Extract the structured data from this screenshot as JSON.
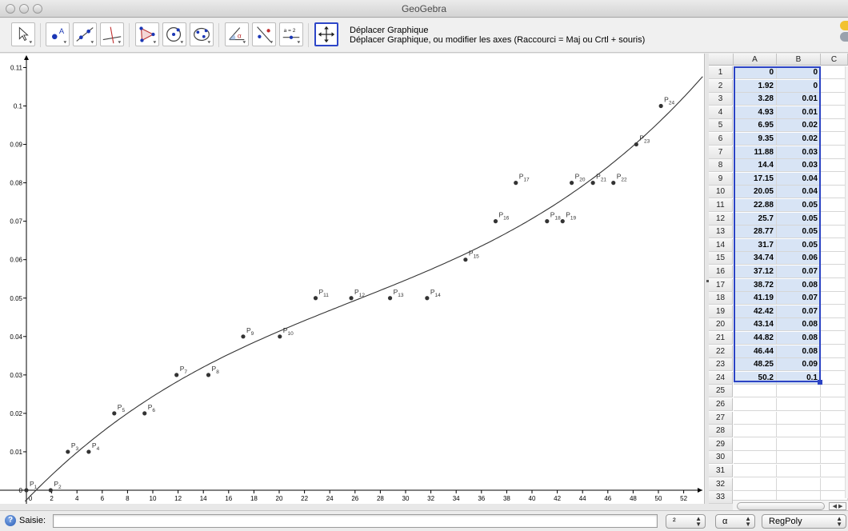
{
  "window": {
    "title": "GeoGebra"
  },
  "toolbar": {
    "tools": [
      {
        "name": "move-tool-button",
        "icon": "arrow-pointer-icon"
      },
      {
        "name": "point-tool-button",
        "icon": "point-icon",
        "glyph": "A"
      },
      {
        "name": "line-tool-button",
        "icon": "line-icon"
      },
      {
        "name": "perpendicular-tool-button",
        "icon": "perpendicular-line-icon"
      },
      {
        "name": "polygon-tool-button",
        "icon": "polygon-icon"
      },
      {
        "name": "circle-tool-button",
        "icon": "circle-icon"
      },
      {
        "name": "conic-tool-button",
        "icon": "conic-icon"
      },
      {
        "name": "angle-tool-button",
        "icon": "angle-icon",
        "glyph": "α"
      },
      {
        "name": "reflect-tool-button",
        "icon": "reflect-icon"
      },
      {
        "name": "slider-tool-button",
        "icon": "slider-icon",
        "glyph": "a = 2"
      },
      {
        "name": "move-graphics-tool-button",
        "icon": "move-graphics-icon"
      }
    ],
    "selected_tool_title": "Déplacer Graphique",
    "selected_tool_help": "Déplacer Graphique, ou modifier les axes (Raccourci = Maj ou Crtl + souris)"
  },
  "graphics": {
    "x_ticks": [
      "0",
      "2",
      "4",
      "6",
      "8",
      "10",
      "12",
      "14",
      "16",
      "18",
      "20",
      "22",
      "24",
      "26",
      "28",
      "30",
      "32",
      "34",
      "36",
      "38",
      "40",
      "42",
      "44",
      "46",
      "48",
      "50",
      "52"
    ],
    "y_ticks": [
      "0",
      "0.01",
      "0.02",
      "0.03",
      "0.04",
      "0.05",
      "0.06",
      "0.07",
      "0.08",
      "0.09",
      "0.1",
      "0.11"
    ],
    "points": [
      {
        "label": "P",
        "sub": "1",
        "x": 0,
        "y": 0
      },
      {
        "label": "P",
        "sub": "2",
        "x": 1.92,
        "y": 0
      },
      {
        "label": "P",
        "sub": "3",
        "x": 3.28,
        "y": 0.01
      },
      {
        "label": "P",
        "sub": "4",
        "x": 4.93,
        "y": 0.01
      },
      {
        "label": "P",
        "sub": "5",
        "x": 6.95,
        "y": 0.02
      },
      {
        "label": "P",
        "sub": "6",
        "x": 9.35,
        "y": 0.02
      },
      {
        "label": "P",
        "sub": "7",
        "x": 11.88,
        "y": 0.03
      },
      {
        "label": "P",
        "sub": "8",
        "x": 14.4,
        "y": 0.03
      },
      {
        "label": "P",
        "sub": "9",
        "x": 17.15,
        "y": 0.04
      },
      {
        "label": "P",
        "sub": "10",
        "x": 20.05,
        "y": 0.04
      },
      {
        "label": "P",
        "sub": "11",
        "x": 22.88,
        "y": 0.05
      },
      {
        "label": "P",
        "sub": "12",
        "x": 25.7,
        "y": 0.05
      },
      {
        "label": "P",
        "sub": "13",
        "x": 28.77,
        "y": 0.05
      },
      {
        "label": "P",
        "sub": "14",
        "x": 31.7,
        "y": 0.05
      },
      {
        "label": "P",
        "sub": "15",
        "x": 34.74,
        "y": 0.06
      },
      {
        "label": "P",
        "sub": "16",
        "x": 37.12,
        "y": 0.07
      },
      {
        "label": "P",
        "sub": "17",
        "x": 38.72,
        "y": 0.08
      },
      {
        "label": "P",
        "sub": "18",
        "x": 41.19,
        "y": 0.07
      },
      {
        "label": "P",
        "sub": "19",
        "x": 42.42,
        "y": 0.07
      },
      {
        "label": "P",
        "sub": "20",
        "x": 43.14,
        "y": 0.08
      },
      {
        "label": "P",
        "sub": "21",
        "x": 44.82,
        "y": 0.08
      },
      {
        "label": "P",
        "sub": "22",
        "x": 46.44,
        "y": 0.08
      },
      {
        "label": "P",
        "sub": "23",
        "x": 48.25,
        "y": 0.09
      },
      {
        "label": "P",
        "sub": "24",
        "x": 50.2,
        "y": 0.1
      }
    ],
    "curve_color": "#333333",
    "point_color": "#333333"
  },
  "spreadsheet": {
    "columns": [
      "A",
      "B",
      "C"
    ],
    "rows": [
      [
        "0",
        "0"
      ],
      [
        "1.92",
        "0"
      ],
      [
        "3.28",
        "0.01"
      ],
      [
        "4.93",
        "0.01"
      ],
      [
        "6.95",
        "0.02"
      ],
      [
        "9.35",
        "0.02"
      ],
      [
        "11.88",
        "0.03"
      ],
      [
        "14.4",
        "0.03"
      ],
      [
        "17.15",
        "0.04"
      ],
      [
        "20.05",
        "0.04"
      ],
      [
        "22.88",
        "0.05"
      ],
      [
        "25.7",
        "0.05"
      ],
      [
        "28.77",
        "0.05"
      ],
      [
        "31.7",
        "0.05"
      ],
      [
        "34.74",
        "0.06"
      ],
      [
        "37.12",
        "0.07"
      ],
      [
        "38.72",
        "0.08"
      ],
      [
        "41.19",
        "0.07"
      ],
      [
        "42.42",
        "0.07"
      ],
      [
        "43.14",
        "0.08"
      ],
      [
        "44.82",
        "0.08"
      ],
      [
        "46.44",
        "0.08"
      ],
      [
        "48.25",
        "0.09"
      ],
      [
        "50.2",
        "0.1"
      ],
      [
        "",
        ""
      ],
      [
        "",
        ""
      ],
      [
        "",
        ""
      ],
      [
        "",
        ""
      ],
      [
        "",
        ""
      ],
      [
        "",
        ""
      ],
      [
        "",
        ""
      ],
      [
        "",
        ""
      ],
      [
        "",
        ""
      ]
    ],
    "selection_color": "#2b43c4"
  },
  "input_bar": {
    "label": "Saisie:",
    "value": "",
    "combo_power": "²",
    "combo_greek": "α",
    "combo_command": "RegPoly"
  }
}
